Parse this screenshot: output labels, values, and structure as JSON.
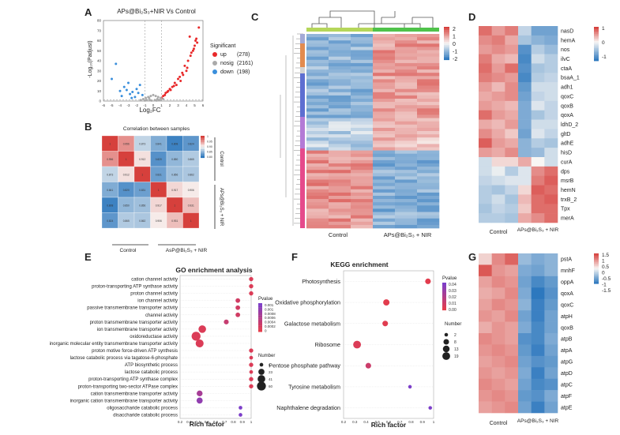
{
  "panels": {
    "A": {
      "letter": "A",
      "title": "APs@Bi₂S₃+NIR Vs Control",
      "xlabel": "Log₂FC",
      "ylabel": "-Log₁₀(Padjust)",
      "xticks": [
        "-6",
        "-5",
        "-4",
        "-3",
        "-2",
        "-1",
        "0",
        "1",
        "2",
        "3",
        "4",
        "5",
        "6"
      ],
      "yticks": [
        "0",
        "10",
        "20",
        "30",
        "40",
        "50",
        "60",
        "70",
        "80"
      ],
      "legend_title": "Significant",
      "legend_items": [
        {
          "label": "up",
          "count": "(278)",
          "color": "#e8292a"
        },
        {
          "label": "nosig",
          "count": "(2161)",
          "color": "#aaaaaa"
        },
        {
          "label": "down",
          "count": "(198)",
          "color": "#3a8fdc"
        }
      ]
    },
    "B": {
      "letter": "B",
      "title": "Correlation between samples",
      "scale_labels": [
        "1",
        "0.95",
        "0.90",
        "0.85",
        "0.80"
      ],
      "col_labels": [
        "Control",
        "AsP@Bi₂S₃ + NIR"
      ],
      "row_labels": [
        "Control",
        "APs@Bi₂S₃ + NIR"
      ],
      "values": [
        [
          "1",
          "0.956",
          "0.873",
          "0.841",
          "0.808",
          "0.824"
        ],
        [
          "0.956",
          "1",
          "0.912",
          "0.820",
          "0.850",
          "0.865"
        ],
        [
          "0.873",
          "0.912",
          "1",
          "0.831",
          "0.856",
          "0.862"
        ],
        [
          "0.841",
          "0.820",
          "0.831",
          "1",
          "0.917",
          "0.906"
        ],
        [
          "0.808",
          "0.850",
          "0.856",
          "0.917",
          "1",
          "0.931"
        ],
        [
          "0.824",
          "0.865",
          "0.862",
          "0.906",
          "0.931",
          "1"
        ]
      ]
    },
    "C": {
      "letter": "C",
      "scale_labels": [
        "2",
        "1",
        "0",
        "-1",
        "-2"
      ],
      "group_labels": [
        "Control",
        "APs@Bi₂S₃ + NIR"
      ]
    },
    "D": {
      "letter": "D",
      "scale_labels": [
        "1",
        "0",
        "-1"
      ],
      "genes": [
        "nasD",
        "hemA",
        "nos",
        "ilvC",
        "ctaA",
        "bsaA_1",
        "adh1",
        "qoxC",
        "qoxB",
        "qoxA",
        "ldhD_2",
        "gltD",
        "adhE",
        "hisD",
        "curA",
        "dps",
        "msrB",
        "hemN",
        "trxB_2",
        "Tpx",
        "merA"
      ],
      "group_labels": [
        "Control",
        "APs@Bi₂S₃ + NIR"
      ]
    },
    "E": {
      "letter": "E",
      "title": "GO enrichment analysis",
      "xlabel": "Rich factor",
      "xticks": [
        "0.2",
        "0.3",
        "0.4",
        "0.5",
        "0.6",
        "0.7",
        "0.8",
        "0.9",
        "1"
      ],
      "pvalue_title": "Pvalue",
      "pvalue_labels": [
        "0.001",
        "0.001",
        "0.0008",
        "0.0006",
        "0.0004",
        "0.0002",
        "0"
      ],
      "number_title": "Number",
      "number_labels": [
        "5",
        "23",
        "41",
        "60"
      ]
    },
    "F": {
      "letter": "F",
      "title": "KEGG enrichment",
      "xlabel": "Rich factor",
      "xticks": [
        "0.2",
        "0.3",
        "0.4",
        "0.5",
        "0.6",
        "0.7",
        "0.8",
        "0.9",
        "1"
      ],
      "pvalue_title": "Pvalue",
      "pvalue_labels": [
        "0.04",
        "0.03",
        "0.02",
        "0.01",
        "0.00"
      ],
      "number_title": "Number",
      "number_labels": [
        "2",
        "8",
        "13",
        "19"
      ]
    },
    "G": {
      "letter": "G",
      "scale_labels": [
        "1.5",
        "1",
        "0.5",
        "0",
        "-0.5",
        "-1",
        "-1.5"
      ],
      "genes": [
        "pstA",
        "mnhF",
        "oppA",
        "qoxA",
        "qoxC",
        "atpH",
        "qoxB",
        "atpB",
        "atpA",
        "atpG",
        "atpD",
        "atpC",
        "atpF",
        "atpE"
      ],
      "group_labels": [
        "Control",
        "APs@Bi₂S₃ + NIR"
      ]
    }
  },
  "chart_data": [
    {
      "type": "scatter",
      "panel": "A",
      "title": "APs@Bi₂S₃+NIR Vs Control",
      "xlabel": "Log₂FC",
      "ylabel": "-Log₁₀(Padjust)",
      "xlim": [
        -6,
        6
      ],
      "ylim": [
        0,
        80
      ],
      "series": [
        {
          "name": "up",
          "count": 278,
          "x": [
            1.0,
            1.2,
            1.5,
            1.8,
            2.0,
            2.3,
            2.6,
            3.0,
            3.3,
            3.6,
            4.0,
            4.2,
            4.5,
            4.8,
            5.0,
            5.2,
            5.5,
            4.4,
            3.8,
            2.8,
            3.2,
            4.6,
            5.1,
            1.4,
            1.7,
            2.1,
            2.5,
            3.5,
            4.1,
            4.9,
            5.3
          ],
          "y": [
            3,
            5,
            8,
            10,
            12,
            14,
            18,
            22,
            20,
            26,
            30,
            40,
            45,
            50,
            55,
            62,
            73,
            64,
            35,
            16,
            24,
            48,
            60,
            6,
            9,
            11,
            15,
            28,
            33,
            52,
            58
          ]
        },
        {
          "name": "nosig",
          "count": 2161,
          "x": [
            -1.5,
            -1.2,
            -0.9,
            -0.6,
            -0.3,
            0,
            0.3,
            0.6,
            0.9,
            1.2,
            -0.8,
            -0.4,
            0.2,
            0.5,
            0.8,
            -1.0,
            -0.2,
            0.4,
            0.7,
            -0.5
          ],
          "y": [
            1,
            2,
            3,
            4,
            5,
            6,
            5,
            4,
            3,
            2,
            1,
            1,
            1,
            2,
            1,
            0.5,
            0.5,
            0.5,
            1,
            3
          ]
        },
        {
          "name": "down",
          "count": 198,
          "x": [
            -4.0,
            -3.5,
            -3.0,
            -2.5,
            -2.0,
            -1.6,
            -1.3,
            -2.8,
            -3.2,
            -4.5,
            -2.2,
            -1.8,
            -5.0,
            -3.8,
            -2.6
          ],
          "y": [
            10,
            14,
            18,
            9,
            12,
            16,
            6,
            7,
            11,
            37,
            4,
            8,
            22,
            5,
            3
          ]
        }
      ]
    },
    {
      "type": "heatmap",
      "panel": "B",
      "title": "Correlation between samples",
      "rows": 6,
      "cols": 6,
      "values": [
        [
          1,
          0.956,
          0.873,
          0.841,
          0.808,
          0.824
        ],
        [
          0.956,
          1,
          0.912,
          0.82,
          0.85,
          0.865
        ],
        [
          0.873,
          0.912,
          1,
          0.831,
          0.856,
          0.862
        ],
        [
          0.841,
          0.82,
          0.831,
          1,
          0.917,
          0.906
        ],
        [
          0.808,
          0.85,
          0.856,
          0.917,
          1,
          0.931
        ],
        [
          0.824,
          0.865,
          0.862,
          0.906,
          0.931,
          1
        ]
      ],
      "range": [
        0.8,
        1
      ]
    },
    {
      "type": "heatmap",
      "panel": "D",
      "rows": [
        "nasD",
        "hemA",
        "nos",
        "ilvC",
        "ctaA",
        "bsaA_1",
        "adh1",
        "qoxC",
        "qoxB",
        "qoxA",
        "ldhD_2",
        "gltD",
        "adhE",
        "hisD",
        "curA",
        "dps",
        "msrB",
        "hemN",
        "trxB_2",
        "Tpx",
        "merA"
      ],
      "columns": [
        "Control 1",
        "Control 2",
        "Control 3",
        "APs@Bi₂S₃+NIR 1",
        "APs@Bi₂S₃+NIR 2",
        "APs@Bi₂S₃+NIR 3"
      ],
      "values": [
        [
          0.9,
          0.6,
          0.8,
          -0.4,
          -1.0,
          -1.0
        ],
        [
          0.7,
          0.8,
          0.5,
          -0.6,
          -0.8,
          -0.9
        ],
        [
          0.6,
          0.7,
          0.6,
          -1.2,
          -0.5,
          -0.7
        ],
        [
          0.8,
          0.5,
          0.4,
          -1.3,
          -0.3,
          -0.5
        ],
        [
          0.9,
          0.6,
          0.9,
          -1.2,
          -0.6,
          -0.5
        ],
        [
          0.8,
          0.7,
          0.6,
          -1.3,
          -0.5,
          -0.4
        ],
        [
          0.6,
          0.4,
          0.7,
          -1.1,
          -0.3,
          -0.3
        ],
        [
          0.5,
          0.6,
          0.7,
          -1.0,
          -0.4,
          -0.3
        ],
        [
          0.6,
          0.5,
          0.4,
          -0.9,
          -0.2,
          -0.4
        ],
        [
          0.9,
          0.6,
          0.5,
          -0.9,
          -0.6,
          -0.4
        ],
        [
          0.5,
          0.4,
          0.6,
          -0.9,
          -0.3,
          -0.3
        ],
        [
          0.7,
          0.5,
          0.3,
          -1.0,
          -0.2,
          -0.4
        ],
        [
          1.0,
          0.6,
          0.5,
          -0.8,
          -0.5,
          -0.6
        ],
        [
          0.6,
          0.5,
          0.7,
          -0.8,
          -0.7,
          -0.3
        ],
        [
          -0.3,
          0.2,
          0.2,
          0.5,
          0.0,
          -0.3
        ],
        [
          -0.3,
          -0.1,
          -0.5,
          -0.2,
          0.7,
          0.9
        ],
        [
          -0.4,
          -0.3,
          -0.2,
          -0.2,
          0.8,
          1.0
        ],
        [
          -0.5,
          -0.6,
          -0.4,
          0.2,
          1.0,
          0.9
        ],
        [
          -0.5,
          -0.3,
          -0.6,
          0.4,
          0.9,
          1.0
        ],
        [
          -0.6,
          -0.4,
          -0.5,
          0.3,
          0.9,
          0.9
        ],
        [
          -0.5,
          -0.5,
          -0.6,
          0.5,
          0.7,
          0.9
        ]
      ],
      "range": [
        -1.5,
        1.2
      ]
    },
    {
      "type": "scatter",
      "panel": "E",
      "title": "GO enrichment analysis",
      "xlabel": "Rich factor",
      "xlim": [
        0.2,
        1
      ],
      "terms": [
        "cation channel activity",
        "proton-transporting ATP synthase activity",
        "proton channel activity",
        "ion channel activity",
        "passive transmembrane transporter activity",
        "channel activity",
        "proton transmembrane transporter activity",
        "ion transmembrane transporter activity",
        "oxidoreductase activity",
        "inorganic molecular entity transmembrane transporter activity",
        "proton motive force-driven ATP synthesis",
        "lactose catabolic process via tagatose-6-phosphate",
        "ATP biosynthetic process",
        "lactose catabolic process",
        "proton-transporting ATP synthase complex",
        "proton-transporting two-sector ATPase complex",
        "cation transmembrane transporter activity",
        "inorganic cation transmembrane transporter activity",
        "oligosaccharide catabolic process",
        "disaccharide catabolic process"
      ],
      "rich_factor": [
        1,
        1,
        1,
        0.85,
        0.85,
        0.85,
        0.72,
        0.45,
        0.38,
        0.42,
        1,
        1,
        1,
        1,
        1,
        1,
        0.42,
        0.42,
        0.88,
        0.88
      ],
      "number": [
        8,
        8,
        8,
        10,
        10,
        10,
        12,
        40,
        60,
        45,
        8,
        5,
        8,
        5,
        8,
        8,
        20,
        22,
        5,
        5
      ],
      "pvalue": [
        0.0001,
        0.0001,
        0.0001,
        0.0002,
        0.0002,
        0.0002,
        0.0003,
        0.0001,
        0.0001,
        0.0001,
        0.0001,
        0.0001,
        0.0001,
        0.0001,
        0.0001,
        0.0001,
        0.0006,
        0.0008,
        0.001,
        0.001
      ]
    },
    {
      "type": "scatter",
      "panel": "F",
      "title": "KEGG enrichment",
      "xlabel": "Rich factor",
      "xlim": [
        0.2,
        1
      ],
      "terms": [
        "Photosynthesis",
        "Oxidative phosphorylation",
        "Galactose metabolism",
        "Ribosome",
        "Pentose phosphate pathway",
        "Tyrosine metabolism",
        "Naphthalene degradation"
      ],
      "rich_factor": [
        0.95,
        0.58,
        0.57,
        0.32,
        0.42,
        0.79,
        0.97
      ],
      "number": [
        8,
        11,
        8,
        19,
        8,
        2,
        2
      ],
      "pvalue": [
        0.001,
        0.001,
        0.002,
        0.004,
        0.01,
        0.04,
        0.04
      ]
    },
    {
      "type": "heatmap",
      "panel": "G",
      "rows": [
        "pstA",
        "mnhF",
        "oppA",
        "qoxA",
        "qoxC",
        "atpH",
        "qoxB",
        "atpB",
        "atpA",
        "atpG",
        "atpD",
        "atpC",
        "atpF",
        "atpE"
      ],
      "columns": [
        "Control 1",
        "Control 2",
        "Control 3",
        "APs@Bi₂S₃+NIR 1",
        "APs@Bi₂S₃+NIR 2",
        "APs@Bi₂S₃+NIR 3"
      ],
      "values": [
        [
          0.3,
          0.9,
          1.2,
          -0.7,
          -0.9,
          -0.8
        ],
        [
          1.3,
          0.8,
          0.7,
          -0.9,
          -1.0,
          -0.8
        ],
        [
          0.7,
          0.9,
          0.8,
          -1.0,
          -1.3,
          -1.1
        ],
        [
          0.6,
          0.7,
          0.9,
          -0.9,
          -1.5,
          -1.2
        ],
        [
          0.7,
          0.9,
          0.8,
          -0.8,
          -1.4,
          -1.1
        ],
        [
          0.8,
          0.7,
          0.9,
          -1.0,
          -1.4,
          -1.0
        ],
        [
          0.6,
          0.8,
          0.7,
          -0.9,
          -1.3,
          -1.0
        ],
        [
          0.9,
          0.8,
          0.7,
          -1.2,
          -1.3,
          -0.9
        ],
        [
          0.8,
          0.9,
          0.8,
          -1.1,
          -1.4,
          -1.0
        ],
        [
          0.7,
          0.8,
          0.9,
          -1.0,
          -1.2,
          -1.1
        ],
        [
          0.8,
          0.7,
          0.8,
          -0.9,
          -1.4,
          -1.0
        ],
        [
          0.9,
          0.8,
          0.7,
          -1.0,
          -1.3,
          -1.2
        ],
        [
          0.8,
          0.9,
          0.8,
          -1.1,
          -1.2,
          -0.9
        ],
        [
          0.7,
          0.8,
          0.9,
          -1.0,
          -1.4,
          -1.0
        ]
      ],
      "range": [
        -1.5,
        1.5
      ]
    }
  ]
}
